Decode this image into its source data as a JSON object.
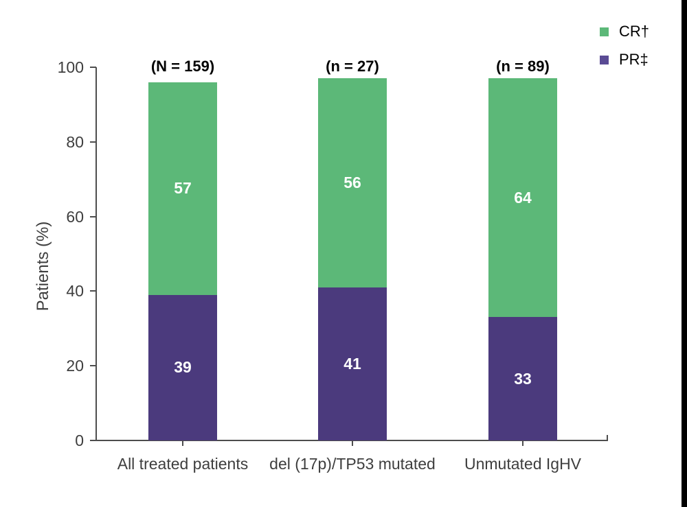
{
  "page": {
    "background_color": "#ffffff",
    "right_edge_bar_color": "#000000"
  },
  "legend": {
    "position": "top-right",
    "items": [
      {
        "label": "CR†",
        "color": "#5CB878"
      },
      {
        "label": "PR‡",
        "color": "#5A4B94"
      }
    ]
  },
  "chart_data": {
    "type": "bar",
    "stacked": true,
    "title": "",
    "xlabel": "",
    "ylabel": "Patients (%)",
    "ylim": [
      0,
      100
    ],
    "yticks": [
      0,
      20,
      40,
      60,
      80,
      100
    ],
    "grid": false,
    "legend_position": "top-right",
    "categories": [
      "All treated patients",
      "del (17p)/TP53 mutated",
      "Unmutated IgHV"
    ],
    "group_labels": [
      "(N = 159)",
      "(n = 27)",
      "(n = 89)"
    ],
    "series": [
      {
        "name": "PR‡",
        "color": "#4B3A7D",
        "values": [
          39,
          41,
          33
        ]
      },
      {
        "name": "CR†",
        "color": "#5CB878",
        "values": [
          57,
          56,
          64
        ]
      }
    ],
    "totals": [
      96,
      97,
      97
    ]
  }
}
